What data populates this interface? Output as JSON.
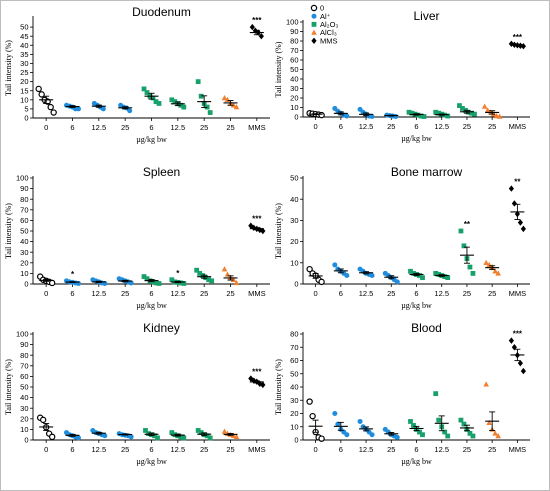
{
  "chart_data": [
    {
      "type": "scatter",
      "title": "Duodenum",
      "ylabel": "Tail intensity (%)",
      "xlabel": "µg/kg bw",
      "ylim": [
        0,
        55
      ],
      "yticks": [
        0,
        5,
        10,
        15,
        20,
        25,
        30,
        35,
        40,
        45,
        50
      ],
      "categories": [
        "0",
        "6",
        "12.5",
        "25",
        "6",
        "12.5",
        "25",
        "25",
        "MMS"
      ],
      "groups": [
        "0",
        "Al⁺",
        "Al⁺",
        "Al⁺",
        "Al2O3",
        "Al2O3",
        "Al2O3",
        "AlCl3",
        "MMS"
      ],
      "points": [
        [
          16,
          13,
          10,
          9,
          6,
          3
        ],
        [
          7,
          6.5,
          6,
          5,
          5
        ],
        [
          8,
          7,
          6,
          5
        ],
        [
          7,
          6,
          5.5,
          4
        ],
        [
          16,
          14,
          12,
          11,
          9,
          8
        ],
        [
          10,
          9,
          8,
          7,
          6
        ],
        [
          20,
          12,
          8,
          6,
          3
        ],
        [
          11,
          10,
          8,
          7,
          6
        ],
        [
          50,
          48,
          47,
          45
        ]
      ],
      "means": [
        10,
        6.3,
        6.5,
        5.6,
        12,
        7.8,
        9,
        8.3,
        47
      ],
      "sems": [
        2,
        0.5,
        0.6,
        0.6,
        1.6,
        1.0,
        3.2,
        1.3,
        1.2
      ],
      "significance": [
        "",
        "",
        "",
        "",
        "",
        "",
        "",
        "",
        "***"
      ]
    },
    {
      "type": "scatter",
      "title": "Liver",
      "ylabel": "Tail intensity (%)",
      "xlabel": "µg/kg bw",
      "ylim": [
        0,
        100
      ],
      "yticks": [
        0,
        10,
        20,
        30,
        40,
        50,
        60,
        70,
        80,
        90,
        100
      ],
      "categories": [
        "0",
        "6",
        "12.5",
        "25",
        "6",
        "12.5",
        "25",
        "25",
        "MMS"
      ],
      "groups": [
        "0",
        "Al⁺",
        "Al⁺",
        "Al⁺",
        "Al2O3",
        "Al2O3",
        "Al2O3",
        "AlCl3",
        "MMS"
      ],
      "points": [
        [
          4,
          3.5,
          3,
          2.5,
          2
        ],
        [
          9,
          6,
          4,
          2,
          1
        ],
        [
          8,
          5,
          3,
          1,
          0.5
        ],
        [
          2,
          1.5,
          1,
          0.5
        ],
        [
          5,
          4,
          3,
          2,
          1,
          0.5
        ],
        [
          5,
          4,
          3,
          2,
          1
        ],
        [
          12,
          9,
          7,
          5,
          4,
          3
        ],
        [
          11,
          7,
          5,
          3,
          1,
          0.5
        ],
        [
          77,
          76,
          75.5,
          75,
          74.5
        ]
      ],
      "means": [
        3,
        3.8,
        2.8,
        1.5,
        2.7,
        2.5,
        5.5,
        4.8,
        76
      ],
      "sems": [
        0.5,
        1.5,
        1.4,
        0.4,
        0.7,
        0.6,
        1.5,
        1.8,
        0.4
      ],
      "significance": [
        "",
        "",
        "",
        "",
        "",
        "",
        "",
        "",
        "***"
      ]
    },
    {
      "type": "scatter",
      "title": "Spleen",
      "ylabel": "Tail intensity (%)",
      "xlabel": "µg/kg bw",
      "ylim": [
        0,
        100
      ],
      "yticks": [
        0,
        10,
        20,
        30,
        40,
        50,
        60,
        70,
        80,
        90,
        100
      ],
      "categories": [
        "0",
        "6",
        "12.5",
        "25",
        "6",
        "12.5",
        "25",
        "25",
        "MMS"
      ],
      "groups": [
        "0",
        "Al⁺",
        "Al⁺",
        "Al⁺",
        "Al2O3",
        "Al2O3",
        "Al2O3",
        "AlCl3",
        "MMS"
      ],
      "points": [
        [
          7,
          4,
          3,
          2,
          1
        ],
        [
          3,
          2,
          1.5,
          1,
          0.5
        ],
        [
          4,
          3,
          2,
          1,
          0.5
        ],
        [
          5,
          4,
          3,
          2,
          1
        ],
        [
          7,
          5,
          3,
          2,
          1,
          0.5
        ],
        [
          4,
          2,
          1.5,
          1,
          0.5
        ],
        [
          13,
          10,
          8,
          6,
          4,
          3
        ],
        [
          14,
          9,
          6,
          4,
          1
        ],
        [
          55,
          53,
          52,
          51,
          50
        ]
      ],
      "means": [
        3.4,
        1.8,
        2.0,
        2.8,
        3.2,
        1.9,
        6.9,
        5.7,
        52.2
      ],
      "sems": [
        0.9,
        0.4,
        0.6,
        0.7,
        1.0,
        0.6,
        1.5,
        2.0,
        0.9
      ],
      "significance": [
        "",
        "*",
        "",
        "",
        "",
        "*",
        "",
        "",
        "***"
      ]
    },
    {
      "type": "scatter",
      "title": "Bone marrow",
      "ylabel": "Tail intensity (%)",
      "xlabel": "µg/kg bw",
      "ylim": [
        0,
        50
      ],
      "yticks": [
        0,
        10,
        20,
        30,
        40,
        50
      ],
      "categories": [
        "0",
        "6",
        "12.5",
        "25",
        "6",
        "12.5",
        "25",
        "25",
        "MMS"
      ],
      "groups": [
        "0",
        "Al⁺",
        "Al⁺",
        "Al⁺",
        "Al2O3",
        "Al2O3",
        "Al2O3",
        "AlCl3",
        "MMS"
      ],
      "points": [
        [
          7,
          5,
          4,
          2,
          1
        ],
        [
          9,
          7,
          6,
          5,
          4
        ],
        [
          7,
          6,
          5,
          4.5,
          4
        ],
        [
          5,
          4,
          3,
          2,
          1
        ],
        [
          6,
          5,
          4.5,
          4,
          3
        ],
        [
          5,
          4.5,
          4,
          3.5,
          3
        ],
        [
          25,
          18,
          12,
          8,
          5
        ],
        [
          10,
          9,
          8,
          6,
          5
        ],
        [
          45,
          38,
          33,
          29,
          26
        ]
      ],
      "means": [
        3.8,
        6.2,
        5.3,
        3.2,
        4.5,
        4.0,
        13.6,
        7.7,
        34
      ],
      "sems": [
        1.1,
        0.9,
        0.5,
        0.7,
        0.5,
        0.4,
        3.8,
        0.9,
        3.6
      ],
      "significance": [
        "",
        "",
        "",
        "",
        "",
        "",
        "**",
        "",
        "**"
      ]
    },
    {
      "type": "scatter",
      "title": "Kidney",
      "ylabel": "Tail intensity (%)",
      "xlabel": "µg/kg bw",
      "ylim": [
        0,
        100
      ],
      "yticks": [
        0,
        10,
        20,
        30,
        40,
        50,
        60,
        70,
        80,
        90,
        100
      ],
      "categories": [
        "0",
        "6",
        "12.5",
        "25",
        "6",
        "12.5",
        "25",
        "25",
        "MMS"
      ],
      "groups": [
        "0",
        "Al⁺",
        "Al⁺",
        "Al⁺",
        "Al2O3",
        "Al2O3",
        "Al2O3",
        "AlCl3",
        "MMS"
      ],
      "points": [
        [
          21,
          19,
          12,
          6,
          3
        ],
        [
          7,
          5,
          4,
          3,
          2
        ],
        [
          9,
          7,
          6,
          5,
          4
        ],
        [
          6,
          5,
          4.5,
          4,
          3
        ],
        [
          9,
          6,
          5,
          4,
          2
        ],
        [
          7,
          5,
          4,
          3,
          2
        ],
        [
          9,
          7,
          5,
          4,
          2
        ],
        [
          8,
          6,
          5,
          4,
          3
        ],
        [
          58,
          56,
          55,
          53,
          52
        ]
      ],
      "means": [
        12.3,
        4.4,
        6.4,
        5.2,
        5.4,
        4.6,
        5.5,
        5.3,
        54.8
      ],
      "sems": [
        3.3,
        0.9,
        0.9,
        0.5,
        1.2,
        0.9,
        1.2,
        0.9,
        1.0
      ],
      "significance": [
        "",
        "",
        "",
        "",
        "",
        "",
        "",
        "",
        "***"
      ]
    },
    {
      "type": "scatter",
      "title": "Blood",
      "ylabel": "Tail intensity (%)",
      "xlabel": "µg/kg bw",
      "ylim": [
        0,
        80
      ],
      "yticks": [
        0,
        10,
        20,
        30,
        40,
        50,
        60,
        70,
        80
      ],
      "categories": [
        "0",
        "6",
        "12.5",
        "25",
        "6",
        "12.5",
        "25",
        "25",
        "MMS"
      ],
      "groups": [
        "0",
        "Al⁺",
        "Al⁺",
        "Al⁺",
        "Al2O3",
        "Al2O3",
        "Al2O3",
        "AlCl3",
        "MMS"
      ],
      "points": [
        [
          29,
          18,
          6,
          2,
          1
        ],
        [
          20,
          12,
          8,
          6,
          4
        ],
        [
          14,
          10,
          8,
          6,
          4
        ],
        [
          8,
          6,
          4,
          3,
          2
        ],
        [
          14,
          11,
          8,
          6,
          4
        ],
        [
          35,
          15,
          10,
          6,
          3
        ],
        [
          15,
          12,
          8,
          5,
          3
        ],
        [
          42,
          13,
          8,
          5,
          3
        ],
        [
          75,
          70,
          64,
          58,
          52
        ]
      ],
      "means": [
        10.4,
        10.3,
        8.4,
        4.7,
        8.7,
        12.6,
        9.1,
        14.2,
        64.2
      ],
      "sems": [
        4.6,
        3.0,
        1.5,
        1.0,
        1.6,
        5.6,
        2.1,
        7.0,
        4.3
      ],
      "significance": [
        "",
        "",
        "",
        "",
        "",
        "",
        "",
        "",
        "***"
      ]
    }
  ],
  "legend": [
    {
      "label": "0",
      "marker": "open-circle",
      "color": "#000000"
    },
    {
      "label": "Al⁺",
      "marker": "circle",
      "color": "#1f8ddb"
    },
    {
      "label": "Al₂O₃",
      "marker": "square",
      "color": "#18a06b"
    },
    {
      "label": "AlCl₃",
      "marker": "triangle",
      "color": "#f07f2e"
    },
    {
      "label": "MMS",
      "marker": "diamond",
      "color": "#000000"
    }
  ],
  "group_styles": {
    "0": {
      "marker": "open-circle",
      "color": "#000000"
    },
    "Al⁺": {
      "marker": "circle",
      "color": "#1f8ddb"
    },
    "Al2O3": {
      "marker": "square",
      "color": "#18a06b"
    },
    "AlCl3": {
      "marker": "triangle",
      "color": "#f07f2e"
    },
    "MMS": {
      "marker": "diamond",
      "color": "#000000"
    }
  }
}
